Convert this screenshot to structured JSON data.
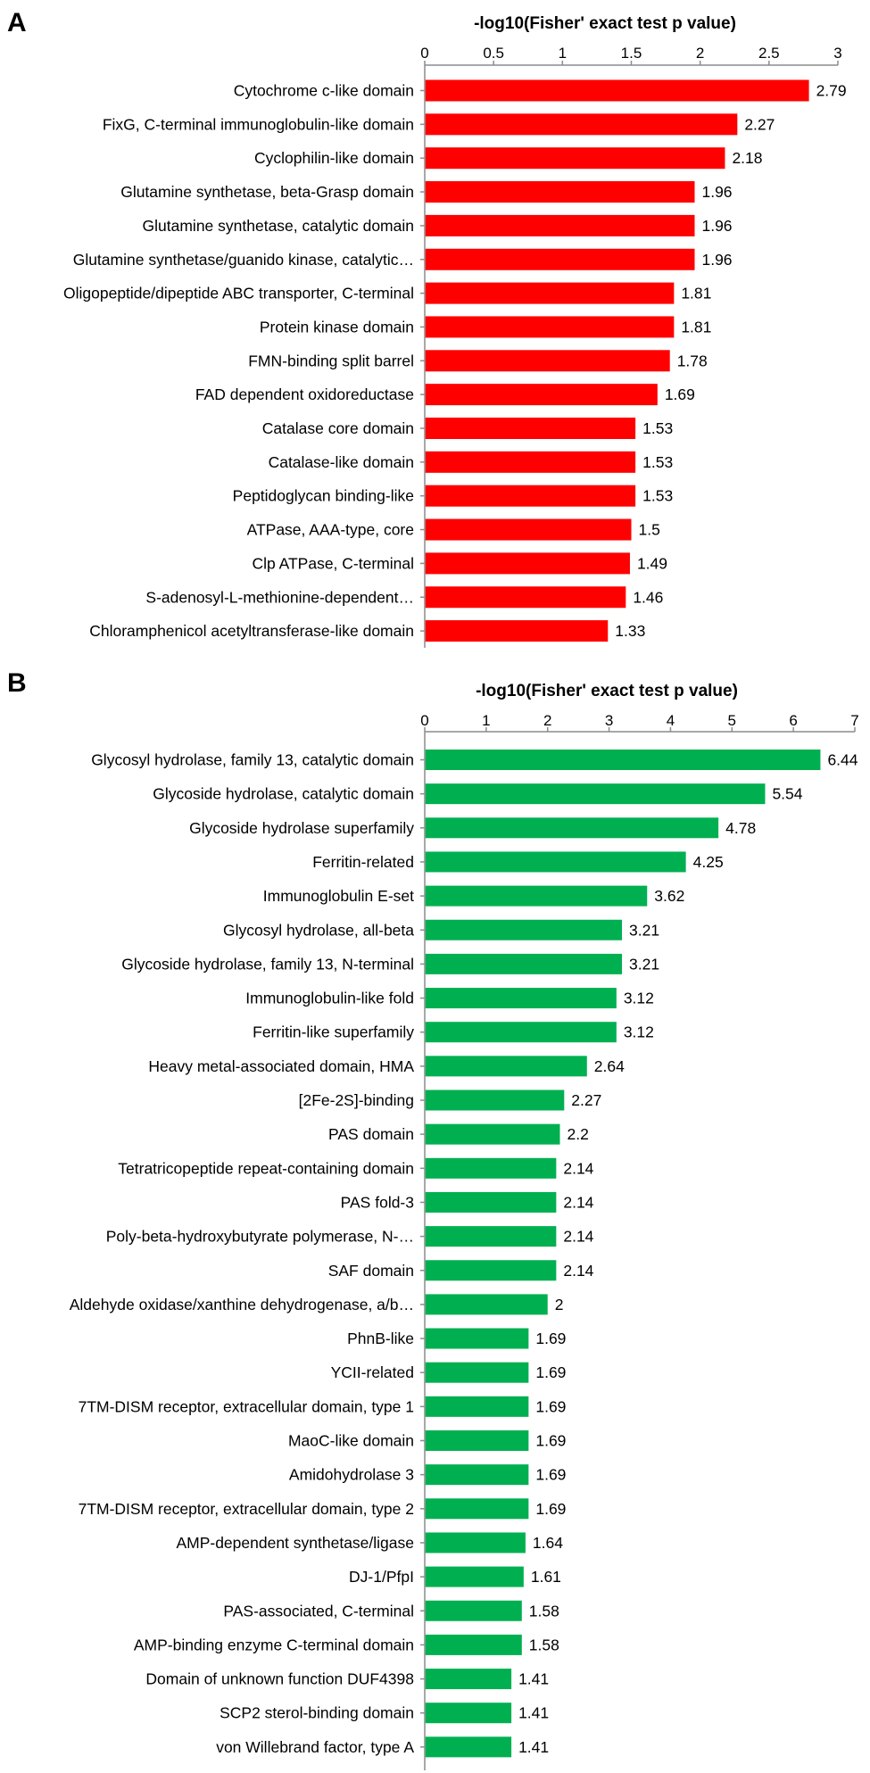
{
  "chart_data": [
    {
      "type": "bar",
      "panel": "A",
      "orientation": "horizontal",
      "title": "-log10(Fisher' exact test p value)",
      "xlim": [
        0,
        3
      ],
      "ticks": [
        "0",
        "0.5",
        "1",
        "1.5",
        "2",
        "2.5",
        "3"
      ],
      "color": "#ff0000",
      "categories": [
        "Cytochrome c-like domain",
        "FixG, C-terminal immunoglobulin-like domain",
        "Cyclophilin-like domain",
        "Glutamine synthetase, beta-Grasp domain",
        "Glutamine synthetase, catalytic domain",
        "Glutamine synthetase/guanido kinase, catalytic…",
        "Oligopeptide/dipeptide ABC transporter, C-terminal",
        "Protein kinase domain",
        "FMN-binding split barrel",
        "FAD dependent oxidoreductase",
        "Catalase core domain",
        "Catalase-like domain",
        "Peptidoglycan binding-like",
        "ATPase, AAA-type, core",
        "Clp ATPase, C-terminal",
        "S-adenosyl-L-methionine-dependent…",
        "Chloramphenicol acetyltransferase-like domain"
      ],
      "values": [
        2.79,
        2.27,
        2.18,
        1.96,
        1.96,
        1.96,
        1.81,
        1.81,
        1.78,
        1.69,
        1.53,
        1.53,
        1.53,
        1.5,
        1.49,
        1.46,
        1.33
      ],
      "value_labels": [
        "2.79",
        "2.27",
        "2.18",
        "1.96",
        "1.96",
        "1.96",
        "1.81",
        "1.81",
        "1.78",
        "1.69",
        "1.53",
        "1.53",
        "1.53",
        "1.5",
        "1.49",
        "1.46",
        "1.33"
      ]
    },
    {
      "type": "bar",
      "panel": "B",
      "orientation": "horizontal",
      "title": "-log10(Fisher' exact test p value)",
      "xlim": [
        0,
        7
      ],
      "ticks": [
        "0",
        "1",
        "2",
        "3",
        "4",
        "5",
        "6",
        "7"
      ],
      "color": "#00b050",
      "categories": [
        "Glycosyl hydrolase, family 13, catalytic domain",
        "Glycoside hydrolase, catalytic domain",
        "Glycoside hydrolase superfamily",
        "Ferritin-related",
        "Immunoglobulin E-set",
        "Glycosyl hydrolase, all-beta",
        "Glycoside hydrolase, family 13, N-terminal",
        "Immunoglobulin-like fold",
        "Ferritin-like superfamily",
        "Heavy metal-associated domain, HMA",
        "[2Fe-2S]-binding",
        "PAS domain",
        "Tetratricopeptide repeat-containing domain",
        "PAS fold-3",
        "Poly-beta-hydroxybutyrate polymerase, N-…",
        "SAF domain",
        "Aldehyde oxidase/xanthine dehydrogenase, a/b…",
        "PhnB-like",
        "YCII-related",
        "7TM-DISM receptor, extracellular domain, type 1",
        "MaoC-like domain",
        "Amidohydrolase 3",
        "7TM-DISM receptor, extracellular domain, type 2",
        "AMP-dependent synthetase/ligase",
        "DJ-1/PfpI",
        "PAS-associated, C-terminal",
        "AMP-binding enzyme C-terminal domain",
        "Domain of unknown function DUF4398",
        "SCP2 sterol-binding domain",
        "von Willebrand factor, type A"
      ],
      "values": [
        6.44,
        5.54,
        4.78,
        4.25,
        3.62,
        3.21,
        3.21,
        3.12,
        3.12,
        2.64,
        2.27,
        2.2,
        2.14,
        2.14,
        2.14,
        2.14,
        2,
        1.69,
        1.69,
        1.69,
        1.69,
        1.69,
        1.69,
        1.64,
        1.61,
        1.58,
        1.58,
        1.41,
        1.41,
        1.41
      ],
      "value_labels": [
        "6.44",
        "5.54",
        "4.78",
        "4.25",
        "3.62",
        "3.21",
        "3.21",
        "3.12",
        "3.12",
        "2.64",
        "2.27",
        "2.2",
        "2.14",
        "2.14",
        "2.14",
        "2.14",
        "2",
        "1.69",
        "1.69",
        "1.69",
        "1.69",
        "1.69",
        "1.69",
        "1.64",
        "1.61",
        "1.58",
        "1.58",
        "1.41",
        "1.41",
        "1.41"
      ]
    }
  ]
}
